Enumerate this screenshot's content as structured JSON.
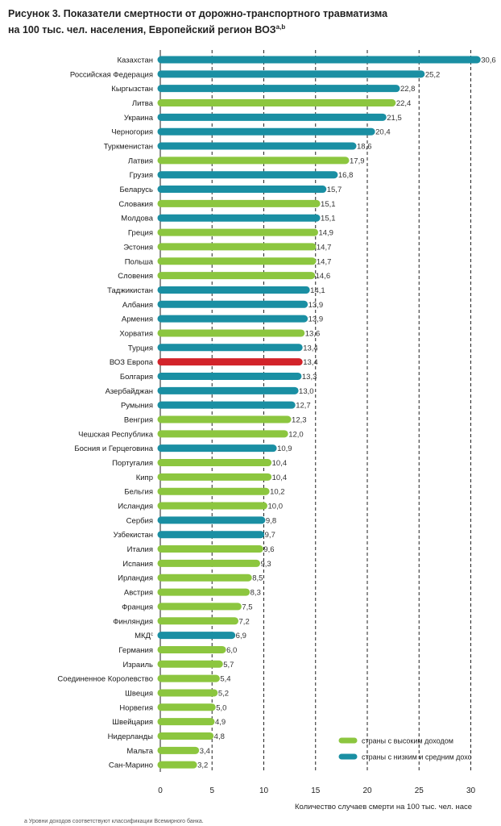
{
  "title_line1": "Рисунок 3. Показатели смертности от дорожно-транспортного травматизма",
  "title_line2": "на 100 тыс. чел. населения, Европейский регион ВОЗ",
  "title_sup": "a,b",
  "footnote": "a  Уровни доходов соответствуют классификации Всемирного банка.",
  "colors": {
    "high": "#8cc63f",
    "low_mid": "#1a8fa3",
    "europe": "#d2232a"
  },
  "chart_data": {
    "type": "bar",
    "orientation": "horizontal",
    "xlabel": "Количество случаев смерти на 100 тыс. чел. насе",
    "xlim": [
      0,
      32
    ],
    "xticks": [
      0,
      5,
      10,
      15,
      20,
      25,
      30
    ],
    "grid": "dashed vertical at 5, 10, 15, 20, 25, 30",
    "legend_placement": "bottom-right",
    "legend": [
      {
        "group": "high",
        "label": "страны с высоким доходом"
      },
      {
        "group": "low_mid",
        "label": "страны с низким и средним дохо"
      }
    ],
    "bars": [
      {
        "label": "Казахстан",
        "value": 30.6,
        "value_label": "30,6",
        "group": "low_mid"
      },
      {
        "label": "Российская Федерация",
        "value": 25.2,
        "value_label": "25,2",
        "group": "low_mid"
      },
      {
        "label": "Кыргызстан",
        "value": 22.8,
        "value_label": "22,8",
        "group": "low_mid"
      },
      {
        "label": "Литва",
        "value": 22.4,
        "value_label": "22,4",
        "group": "high"
      },
      {
        "label": "Украина",
        "value": 21.5,
        "value_label": "21,5",
        "group": "low_mid"
      },
      {
        "label": "Черногория",
        "value": 20.4,
        "value_label": "20,4",
        "group": "low_mid"
      },
      {
        "label": "Туркменистан",
        "value": 18.6,
        "value_label": "18,6",
        "group": "low_mid"
      },
      {
        "label": "Латвия",
        "value": 17.9,
        "value_label": "17,9",
        "group": "high"
      },
      {
        "label": "Грузия",
        "value": 16.8,
        "value_label": "16,8",
        "group": "low_mid"
      },
      {
        "label": "Беларусь",
        "value": 15.7,
        "value_label": "15,7",
        "group": "low_mid"
      },
      {
        "label": "Словакия",
        "value": 15.1,
        "value_label": "15,1",
        "group": "high"
      },
      {
        "label": "Молдова",
        "value": 15.1,
        "value_label": "15,1",
        "group": "low_mid"
      },
      {
        "label": "Греция",
        "value": 14.9,
        "value_label": "14,9",
        "group": "high"
      },
      {
        "label": "Эстония",
        "value": 14.7,
        "value_label": "14,7",
        "group": "high"
      },
      {
        "label": "Польша",
        "value": 14.7,
        "value_label": "14,7",
        "group": "high"
      },
      {
        "label": "Словения",
        "value": 14.6,
        "value_label": "14,6",
        "group": "high"
      },
      {
        "label": "Таджикистан",
        "value": 14.1,
        "value_label": "14,1",
        "group": "low_mid"
      },
      {
        "label": "Албания",
        "value": 13.9,
        "value_label": "13,9",
        "group": "low_mid"
      },
      {
        "label": "Армения",
        "value": 13.9,
        "value_label": "13,9",
        "group": "low_mid"
      },
      {
        "label": "Хорватия",
        "value": 13.6,
        "value_label": "13,6",
        "group": "high"
      },
      {
        "label": "Турция",
        "value": 13.4,
        "value_label": "13,4",
        "group": "low_mid"
      },
      {
        "label": "ВОЗ Европа",
        "value": 13.4,
        "value_label": "13,4",
        "group": "europe"
      },
      {
        "label": "Болгария",
        "value": 13.3,
        "value_label": "13,3",
        "group": "low_mid"
      },
      {
        "label": "Азербайджан",
        "value": 13.0,
        "value_label": "13,0",
        "group": "low_mid"
      },
      {
        "label": "Румыния",
        "value": 12.7,
        "value_label": "12,7",
        "group": "low_mid"
      },
      {
        "label": "Венгрия",
        "value": 12.3,
        "value_label": "12,3",
        "group": "high"
      },
      {
        "label": "Чешская Республика",
        "value": 12.0,
        "value_label": "12,0",
        "group": "high"
      },
      {
        "label": "Босния и Герцеговина",
        "value": 10.9,
        "value_label": "10,9",
        "group": "low_mid"
      },
      {
        "label": "Португалия",
        "value": 10.4,
        "value_label": "10,4",
        "group": "high"
      },
      {
        "label": "Кипр",
        "value": 10.4,
        "value_label": "10,4",
        "group": "high"
      },
      {
        "label": "Бельгия",
        "value": 10.2,
        "value_label": "10,2",
        "group": "high"
      },
      {
        "label": "Исландия",
        "value": 10.0,
        "value_label": "10,0",
        "group": "high"
      },
      {
        "label": "Сербия",
        "value": 9.8,
        "value_label": "9,8",
        "group": "low_mid"
      },
      {
        "label": "Узбекистан",
        "value": 9.7,
        "value_label": "9,7",
        "group": "low_mid"
      },
      {
        "label": "Италия",
        "value": 9.6,
        "value_label": "9,6",
        "group": "high"
      },
      {
        "label": "Испания",
        "value": 9.3,
        "value_label": "9,3",
        "group": "high"
      },
      {
        "label": "Ирландия",
        "value": 8.5,
        "value_label": "8,5",
        "group": "high"
      },
      {
        "label": "Австрия",
        "value": 8.3,
        "value_label": "8,3",
        "group": "high"
      },
      {
        "label": "Франция",
        "value": 7.5,
        "value_label": "7,5",
        "group": "high"
      },
      {
        "label": "Финляндия",
        "value": 7.2,
        "value_label": "7,2",
        "group": "high"
      },
      {
        "label": "МКД",
        "label_sup": "c",
        "value": 6.9,
        "value_label": "6,9",
        "group": "low_mid"
      },
      {
        "label": "Германия",
        "value": 6.0,
        "value_label": "6,0",
        "group": "high"
      },
      {
        "label": "Израиль",
        "value": 5.7,
        "value_label": "5,7",
        "group": "high"
      },
      {
        "label": "Соединенное Королевство",
        "value": 5.4,
        "value_label": "5,4",
        "group": "high"
      },
      {
        "label": "Швеция",
        "value": 5.2,
        "value_label": "5,2",
        "group": "high"
      },
      {
        "label": "Норвегия",
        "value": 5.0,
        "value_label": "5,0",
        "group": "high"
      },
      {
        "label": "Швейцария",
        "value": 4.9,
        "value_label": "4,9",
        "group": "high"
      },
      {
        "label": "Нидерланды",
        "value": 4.8,
        "value_label": "4,8",
        "group": "high"
      },
      {
        "label": "Мальта",
        "value": 3.4,
        "value_label": "3,4",
        "group": "high"
      },
      {
        "label": "Сан-Марино",
        "value": 3.2,
        "value_label": "3,2",
        "group": "high"
      }
    ]
  }
}
